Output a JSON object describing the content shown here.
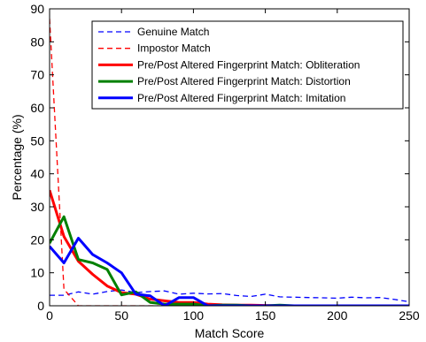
{
  "chart_data": {
    "type": "line",
    "xlabel": "Match Score",
    "ylabel": "Percentage (%)",
    "xlim": [
      0,
      250
    ],
    "ylim": [
      0,
      90
    ],
    "xticks": [
      0,
      50,
      100,
      150,
      200,
      250
    ],
    "yticks": [
      0,
      10,
      20,
      30,
      40,
      50,
      60,
      70,
      80,
      90
    ],
    "grid": false,
    "legend_position": "top-right",
    "series": [
      {
        "name": "Genuine Match",
        "color": "#0000ff",
        "style": "dashed",
        "x": [
          0,
          10,
          20,
          30,
          40,
          50,
          60,
          70,
          80,
          90,
          100,
          110,
          120,
          130,
          140,
          150,
          160,
          170,
          180,
          190,
          200,
          210,
          220,
          230,
          240,
          250
        ],
        "y": [
          3.2,
          3.2,
          4.2,
          3.5,
          4.3,
          4.8,
          4.0,
          4.3,
          4.5,
          3.5,
          3.8,
          3.6,
          3.7,
          3.1,
          2.8,
          3.5,
          2.7,
          2.6,
          2.5,
          2.4,
          2.3,
          2.6,
          2.4,
          2.5,
          1.9,
          1.2
        ]
      },
      {
        "name": "Impostor Match",
        "color": "#ff0000",
        "style": "dashed",
        "x": [
          0,
          10,
          20,
          30,
          40,
          50,
          60,
          70,
          80,
          90,
          100,
          110,
          120,
          130,
          140,
          150,
          160,
          170,
          180,
          190,
          200,
          210,
          220,
          230,
          240,
          250
        ],
        "y": [
          87,
          5,
          0,
          0,
          0,
          0,
          0,
          0,
          0,
          0,
          0,
          0,
          0,
          0,
          0,
          0,
          0,
          0,
          0,
          0,
          0,
          0,
          0,
          0,
          0,
          0
        ]
      },
      {
        "name": "Pre/Post Altered Fingerprint Match: Obliteration",
        "color": "#ff0000",
        "style": "solid",
        "x": [
          0,
          10,
          20,
          30,
          40,
          50,
          60,
          70,
          80,
          90,
          100,
          110,
          120,
          130,
          140,
          150,
          160,
          170,
          180,
          190,
          200,
          210,
          220,
          230,
          240,
          250
        ],
        "y": [
          35,
          21,
          13.5,
          9.5,
          6.0,
          4.0,
          3.5,
          2.0,
          1.5,
          1.0,
          1.0,
          0.5,
          0.3,
          0.2,
          0.2,
          0.1,
          0,
          0,
          0,
          0,
          0,
          0,
          0,
          0,
          0,
          0
        ]
      },
      {
        "name": "Pre/Post Altered Fingerprint Match: Distortion",
        "color": "#008000",
        "style": "solid",
        "x": [
          0,
          10,
          20,
          30,
          40,
          50,
          60,
          70,
          80,
          90,
          100,
          110,
          120,
          130,
          140,
          150,
          160,
          170,
          180,
          190,
          200,
          210,
          220,
          230,
          240,
          250
        ],
        "y": [
          19,
          27,
          14,
          13,
          11,
          3.3,
          4.2,
          1.0,
          0.5,
          0.5,
          0.5,
          0,
          0.2,
          0.2,
          0,
          0,
          0.2,
          0,
          0,
          0,
          0,
          0,
          0,
          0,
          0,
          0
        ]
      },
      {
        "name": "Pre/Post Altered Fingerprint Match: Imitation",
        "color": "#0000ff",
        "style": "solid",
        "x": [
          0,
          10,
          20,
          30,
          40,
          50,
          60,
          70,
          80,
          90,
          100,
          110,
          120,
          130,
          140,
          150,
          160,
          170,
          180,
          190,
          200,
          210,
          220,
          230,
          240,
          250
        ],
        "y": [
          18,
          13,
          20.5,
          15.5,
          13,
          10,
          3.5,
          3.0,
          0,
          2.5,
          2.5,
          0,
          0,
          0,
          0,
          0,
          0,
          0,
          0,
          0,
          0,
          0,
          0,
          0,
          0,
          0
        ]
      }
    ]
  }
}
